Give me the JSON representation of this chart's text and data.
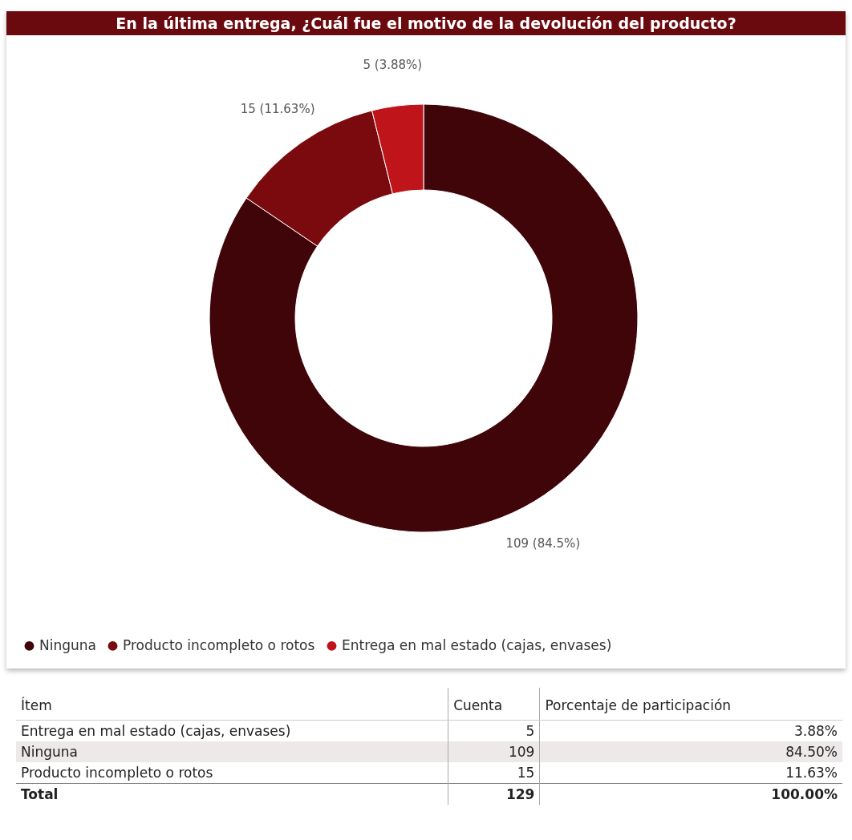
{
  "chart_data": [
    {
      "type": "donut",
      "title": "En la última entrega, ¿Cuál fue el motivo de la devolución del producto?",
      "categories": [
        "Ninguna",
        "Producto incompleto o rotos",
        "Entrega en mal estado (cajas, envases)"
      ],
      "values": [
        109,
        15,
        5
      ],
      "colors": [
        "#3f0508",
        "#7a0a0e",
        "#c0141b"
      ],
      "value_labels": [
        "109 (84.5%)",
        "15 (11.63%)",
        "5 (3.88%)"
      ],
      "legend": "bottom"
    },
    {
      "type": "other",
      "xlabel": "Ítem",
      "data_labels": true,
      "categories": [
        "Entrega en mal estado (cajas, envases)",
        "Ninguna",
        "Producto incompleto o rotos"
      ],
      "series": [
        {
          "name": "Cuenta",
          "values": [
            5,
            109,
            15
          ]
        },
        {
          "name": "Porcentaje de participación",
          "values": [
            3.88,
            84.5,
            11.63
          ],
          "value_labels": [
            "3.88%",
            "84.50%",
            "11.63%"
          ]
        }
      ],
      "annotations": [
        "Total"
      ],
      "totals": [
        "129",
        "100.00%"
      ]
    }
  ]
}
